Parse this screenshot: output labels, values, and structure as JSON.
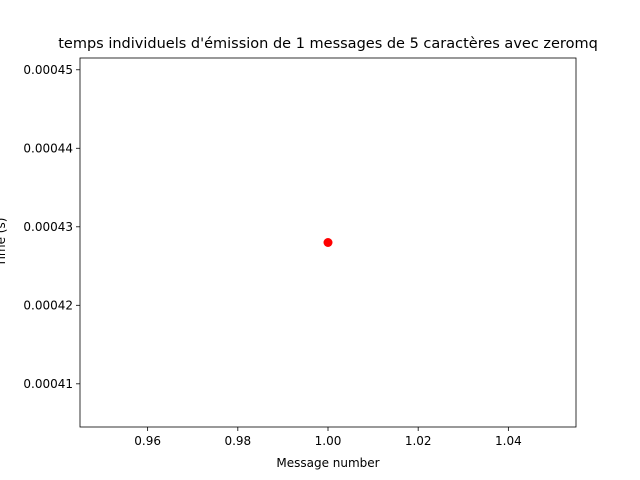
{
  "chart_data": {
    "type": "scatter",
    "title": "temps individuels d'émission de 1 messages de 5 caractères avec zeromq",
    "xlabel": "Message number",
    "ylabel": "Time (s)",
    "xlim": [
      0.945,
      1.055
    ],
    "ylim": [
      0.0004045,
      0.0004515
    ],
    "x_ticks": [
      0.96,
      0.98,
      1.0,
      1.02,
      1.04
    ],
    "x_tick_labels": [
      "0.96",
      "0.98",
      "1.00",
      "1.02",
      "1.04"
    ],
    "y_ticks": [
      0.00041,
      0.00042,
      0.00043,
      0.00044,
      0.00045
    ],
    "y_tick_labels": [
      "0.00041",
      "0.00042",
      "0.00043",
      "0.00044",
      "0.00045"
    ],
    "grid": false,
    "legend": "none",
    "series": [
      {
        "color": "#ff0000",
        "marker": "circle",
        "points": [
          {
            "x": 1.0,
            "y": 0.000428
          }
        ]
      }
    ]
  }
}
